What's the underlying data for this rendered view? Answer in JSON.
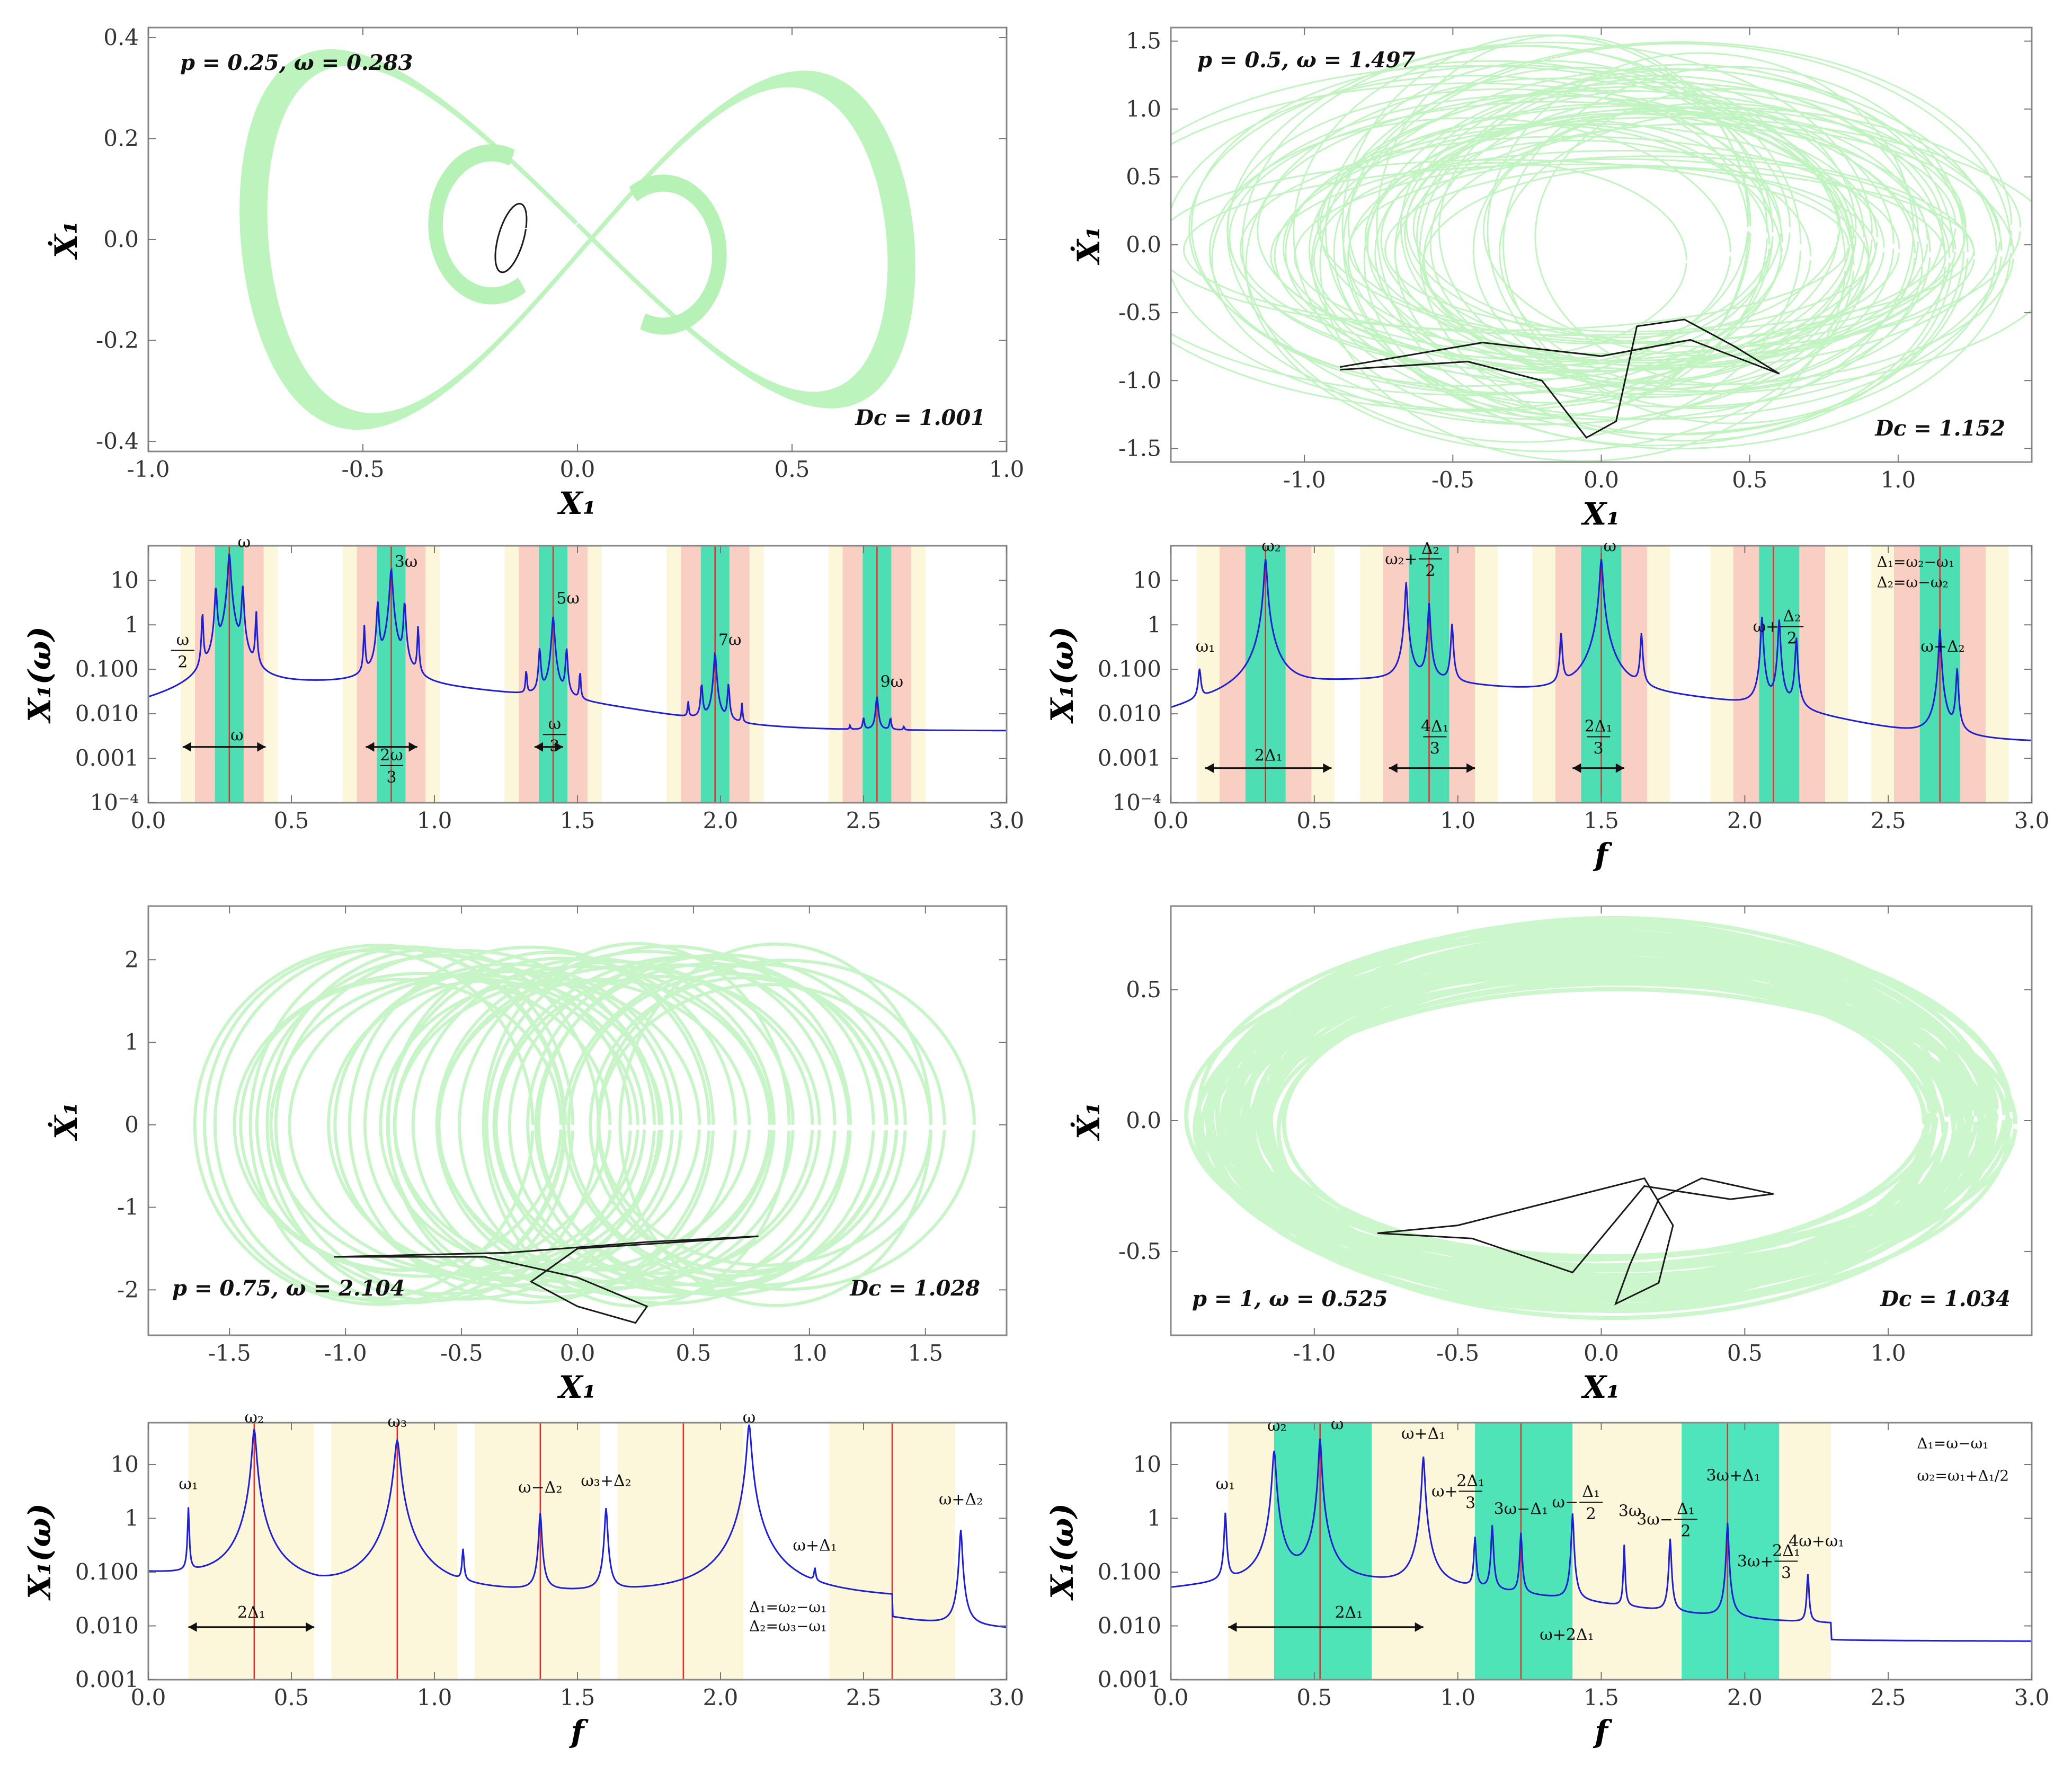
{
  "colors": {
    "attractor": "#b6f2b6",
    "orbit": "#1a1a1a",
    "spectrum": "#1f1fd0",
    "band_green": "#2fe0b0",
    "band_pink": "#f8c8c0",
    "band_yellow": "#fbf5d4",
    "red_line": "#e03030"
  },
  "chart_data": [
    {
      "id": "A",
      "type": "scatter",
      "subtype": "phase_portrait",
      "title": "p = 0.25, ω = 0.283",
      "annotation": "D_c = 1.001",
      "xlabel": "X₁",
      "ylabel": "Ẋ₁",
      "xlim": [
        -1.0,
        1.0
      ],
      "ylim": [
        -0.42,
        0.42
      ],
      "x_ticks": [
        "-1.0",
        "-0.5",
        "0.0",
        "0.5",
        "1.0"
      ],
      "y_ticks": [
        "0.4",
        "0.2",
        "0.0",
        "-0.2",
        "-0.4"
      ]
    },
    {
      "id": "B",
      "type": "scatter",
      "subtype": "phase_portrait",
      "title": "p = 0.5, ω = 1.497",
      "annotation": "D_c = 1.152",
      "xlabel": "X₁",
      "ylabel": "Ẋ₁",
      "xlim": [
        -1.45,
        1.45
      ],
      "ylim": [
        -1.6,
        1.6
      ],
      "x_ticks": [
        "-1.0",
        "-0.5",
        "0.0",
        "0.5",
        "1.0"
      ],
      "y_ticks": [
        "1.5",
        "1.0",
        "0.5",
        "0.0",
        "-0.5",
        "-1.0",
        "-1.5"
      ]
    },
    {
      "id": "C",
      "type": "line",
      "subtype": "power_spectrum",
      "xlabel": "",
      "ylabel": "X₁(ω)",
      "xlim": [
        0,
        3
      ],
      "ylim": [
        0.0001,
        60
      ],
      "x_ticks": [
        "0.0",
        "0.5",
        "1.0",
        "1.5",
        "2.0",
        "2.5",
        "3.0"
      ],
      "y_ticks": [
        "10",
        "1",
        "0.100",
        "0.010",
        "0.001",
        "10⁻⁴"
      ],
      "peak_labels": [
        "ω",
        "3ω",
        "5ω",
        "7ω",
        "9ω"
      ],
      "fraction_labels": [
        {
          "num": "ω",
          "den": "2"
        },
        {
          "num": "2ω",
          "den": "3"
        },
        {
          "num": "ω",
          "den": "3"
        }
      ],
      "arrow_labels": [
        "ω"
      ]
    },
    {
      "id": "D",
      "type": "line",
      "subtype": "power_spectrum",
      "xlabel": "f",
      "ylabel": "X₁(ω)",
      "xlim": [
        0,
        3
      ],
      "ylim": [
        0.0001,
        60
      ],
      "x_ticks": [
        "0.0",
        "0.5",
        "1.0",
        "1.5",
        "2.0",
        "2.5",
        "3.0"
      ],
      "y_ticks": [
        "10",
        "1",
        "0.100",
        "0.010",
        "0.001",
        "10⁻⁴"
      ],
      "peak_labels": [
        "ω₂",
        "ω",
        "ω₁",
        "ω+Δ₂"
      ],
      "compound_labels": [
        {
          "pre": "ω₂+",
          "num": "Δ₂",
          "den": "2"
        },
        {
          "pre": "ω+",
          "num": "Δ₂",
          "den": "2"
        }
      ],
      "fraction_labels": [
        {
          "num": "4Δ₁",
          "den": "3"
        },
        {
          "num": "2Δ₁",
          "den": "3"
        }
      ],
      "arrow_labels": [
        "2Δ₁"
      ],
      "legend": [
        "Δ₁=ω₂−ω₁",
        "Δ₂=ω−ω₂"
      ]
    },
    {
      "id": "E",
      "type": "scatter",
      "subtype": "phase_portrait",
      "title": "p = 0.75, ω = 2.104",
      "annotation": "D_c = 1.028",
      "xlabel": "X₁",
      "ylabel": "Ẋ₁",
      "xlim": [
        -1.85,
        1.85
      ],
      "ylim": [
        -2.55,
        2.65
      ],
      "x_ticks": [
        "-1.5",
        "-1.0",
        "-0.5",
        "0.0",
        "0.5",
        "1.0",
        "1.5"
      ],
      "y_ticks": [
        "2",
        "1",
        "0",
        "-1",
        "-2"
      ]
    },
    {
      "id": "F",
      "type": "scatter",
      "subtype": "phase_portrait",
      "title": "p = 1, ω = 0.525",
      "annotation": "D_c = 1.034",
      "xlabel": "X₁",
      "ylabel": "Ẋ₁",
      "xlim": [
        -1.5,
        1.5
      ],
      "ylim": [
        -0.82,
        0.82
      ],
      "x_ticks": [
        "-1.0",
        "-0.5",
        "0.0",
        "0.5",
        "1.0"
      ],
      "y_ticks": [
        "0.5",
        "0.0",
        "-0.5"
      ]
    },
    {
      "id": "G",
      "type": "line",
      "subtype": "power_spectrum",
      "xlabel": "f",
      "ylabel": "X₁(ω)",
      "xlim": [
        0,
        3
      ],
      "ylim": [
        0.001,
        60
      ],
      "x_ticks": [
        "0.0",
        "0.5",
        "1.0",
        "1.5",
        "2.0",
        "2.5",
        "3.0"
      ],
      "y_ticks": [
        "10",
        "1",
        "0.100",
        "0.010",
        "0.001"
      ],
      "peak_labels": [
        "ω₁",
        "ω₂",
        "ω₃",
        "ω−Δ₂",
        "ω₃+Δ₂",
        "ω",
        "ω+Δ₁",
        "ω+Δ₂"
      ],
      "arrow_labels": [
        "2Δ₁"
      ],
      "legend": [
        "Δ₁=ω₂−ω₁",
        "Δ₂=ω₃−ω₁"
      ]
    },
    {
      "id": "H",
      "type": "line",
      "subtype": "power_spectrum",
      "xlabel": "f",
      "ylabel": "X₁(ω)",
      "xlim": [
        0,
        3
      ],
      "ylim": [
        0.001,
        60
      ],
      "x_ticks": [
        "0.0",
        "0.5",
        "1.0",
        "1.5",
        "2.0",
        "2.5",
        "3.0"
      ],
      "y_ticks": [
        "10",
        "1",
        "0.100",
        "0.010",
        "0.001"
      ],
      "peak_labels": [
        "ω₁",
        "ω₂",
        "ω",
        "ω+Δ₁",
        "3ω−Δ₁",
        "3ω",
        "3ω+Δ₁",
        "4ω+ω₁",
        "ω+2Δ₁"
      ],
      "compound_labels": [
        {
          "pre": "ω+",
          "num": "2Δ₁",
          "den": "3"
        },
        {
          "pre": "ω−",
          "num": "Δ₁",
          "den": "2"
        },
        {
          "pre": "3ω−",
          "num": "Δ₁",
          "den": "2"
        },
        {
          "pre": "3ω+",
          "num": "2Δ₁",
          "den": "3"
        }
      ],
      "arrow_labels": [
        "2Δ₁"
      ],
      "legend": [
        "Δ₁=ω−ω₁",
        "ω₂=ω₁+Δ₁/2"
      ]
    }
  ]
}
